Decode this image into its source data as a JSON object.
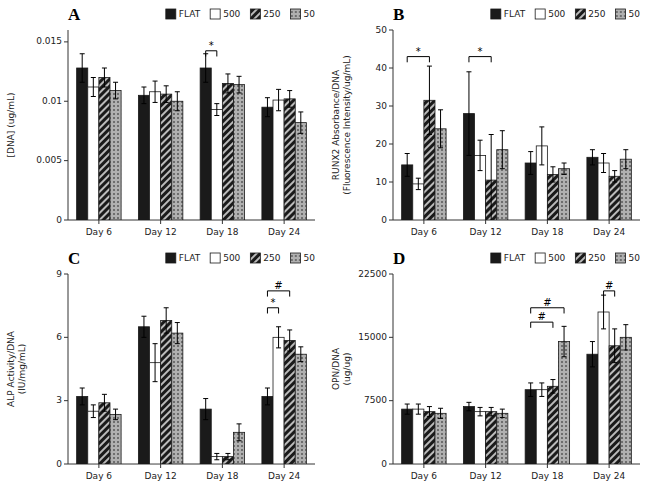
{
  "chart_data": [
    {
      "type": "bar",
      "title": "A",
      "ylabel": "[DNA] (ug/mL)",
      "categories": [
        "Day 6",
        "Day 12",
        "Day 18",
        "Day 24"
      ],
      "series": [
        {
          "name": "FLAT",
          "color": "#1a1a1a",
          "values": [
            0.0128,
            0.0105,
            0.0128,
            0.0095
          ],
          "errors": [
            0.0012,
            0.0007,
            0.0012,
            0.0008
          ]
        },
        {
          "name": "500",
          "color": "#ffffff",
          "values": [
            0.0112,
            0.0108,
            0.0093,
            0.0101
          ],
          "errors": [
            0.0008,
            0.0009,
            0.0005,
            0.0009
          ]
        },
        {
          "name": "250",
          "color": "#1a1a1a",
          "values": [
            0.012,
            0.0106,
            0.0115,
            0.0102
          ],
          "errors": [
            0.0008,
            0.0007,
            0.0008,
            0.0007
          ]
        },
        {
          "name": "50",
          "color": "#b0b0b0",
          "values": [
            0.0109,
            0.01,
            0.0114,
            0.0082
          ],
          "errors": [
            0.0007,
            0.0008,
            0.0007,
            0.0009
          ]
        }
      ],
      "ylim": [
        0,
        0.016
      ],
      "yticks": [
        0,
        0.005,
        0.01,
        0.015
      ],
      "grid": false,
      "legend": "top",
      "annotations": [
        {
          "text": "*",
          "category": "Day 18",
          "from": "FLAT",
          "to": "500",
          "y": 0.01425
        }
      ]
    },
    {
      "type": "bar",
      "title": "B",
      "ylabel": "RUNX2 Absorbance/DNA\n(Fluorescence Intensity/ug/mL)",
      "categories": [
        "Day 6",
        "Day 12",
        "Day 18",
        "Day 24"
      ],
      "series": [
        {
          "name": "FLAT",
          "color": "#1a1a1a",
          "values": [
            14.5,
            28.0,
            15.0,
            16.5
          ],
          "errors": [
            3.0,
            11.0,
            3.0,
            2.0
          ]
        },
        {
          "name": "500",
          "color": "#ffffff",
          "values": [
            9.5,
            17.0,
            19.5,
            15.0
          ],
          "errors": [
            1.5,
            4.0,
            5.0,
            2.5
          ]
        },
        {
          "name": "250",
          "color": "#1a1a1a",
          "values": [
            31.5,
            10.5,
            12.0,
            11.5
          ],
          "errors": [
            9.0,
            12.0,
            2.0,
            1.5
          ]
        },
        {
          "name": "50",
          "color": "#b0b0b0",
          "values": [
            24.0,
            18.5,
            13.5,
            16.0
          ],
          "errors": [
            5.0,
            5.0,
            1.5,
            2.5
          ]
        }
      ],
      "ylim": [
        0,
        50
      ],
      "yticks": [
        0,
        10,
        20,
        30,
        40,
        50
      ],
      "grid": false,
      "legend": "top",
      "annotations": [
        {
          "text": "*",
          "category": "Day 6",
          "from": "FLAT",
          "to": "250",
          "y": 43
        },
        {
          "text": "*",
          "category": "Day 12",
          "from": "FLAT",
          "to": "250",
          "y": 43
        }
      ]
    },
    {
      "type": "bar",
      "title": "C",
      "ylabel": "ALP Activity/DNA\n(IU/mg/mL)",
      "categories": [
        "Day 6",
        "Day 12",
        "Day 18",
        "Day 24"
      ],
      "series": [
        {
          "name": "FLAT",
          "color": "#1a1a1a",
          "values": [
            3.2,
            6.5,
            2.6,
            3.2
          ],
          "errors": [
            0.4,
            0.5,
            0.5,
            0.4
          ]
        },
        {
          "name": "500",
          "color": "#ffffff",
          "values": [
            2.5,
            4.8,
            0.35,
            6.0
          ],
          "errors": [
            0.3,
            0.9,
            0.15,
            0.5
          ]
        },
        {
          "name": "250",
          "color": "#1a1a1a",
          "values": [
            2.9,
            6.8,
            0.35,
            5.85
          ],
          "errors": [
            0.4,
            0.6,
            0.15,
            0.5
          ]
        },
        {
          "name": "50",
          "color": "#b0b0b0",
          "values": [
            2.35,
            6.2,
            1.5,
            5.2
          ],
          "errors": [
            0.25,
            0.5,
            0.4,
            0.35
          ]
        }
      ],
      "ylim": [
        0,
        9
      ],
      "yticks": [
        0,
        3,
        6,
        9
      ],
      "grid": false,
      "legend": "top",
      "annotations": [
        {
          "text": "#",
          "category": "Day 24",
          "from": "FLAT",
          "to": "250",
          "y": 8.2
        },
        {
          "text": "*",
          "category": "Day 24",
          "from": "FLAT",
          "to": "500",
          "y": 7.4
        }
      ]
    },
    {
      "type": "bar",
      "title": "D",
      "ylabel": "OPN/DNA\n(ug/ug)",
      "categories": [
        "Day 6",
        "Day 12",
        "Day 18",
        "Day 24"
      ],
      "series": [
        {
          "name": "FLAT",
          "color": "#1a1a1a",
          "values": [
            6500,
            6800,
            8800,
            13000
          ],
          "errors": [
            600,
            500,
            800,
            1500
          ]
        },
        {
          "name": "500",
          "color": "#ffffff",
          "values": [
            6500,
            6200,
            8800,
            18000
          ],
          "errors": [
            600,
            500,
            800,
            2000
          ]
        },
        {
          "name": "250",
          "color": "#1a1a1a",
          "values": [
            6200,
            6200,
            9200,
            14000
          ],
          "errors": [
            600,
            500,
            800,
            2000
          ]
        },
        {
          "name": "50",
          "color": "#b0b0b0",
          "values": [
            6000,
            6000,
            14500,
            15000
          ],
          "errors": [
            600,
            500,
            1800,
            1500
          ]
        }
      ],
      "ylim": [
        0,
        22500
      ],
      "yticks": [
        0,
        7500,
        15000,
        22500
      ],
      "grid": false,
      "legend": "top",
      "annotations": [
        {
          "text": "#",
          "category": "Day 18",
          "from": "FLAT",
          "to": "50",
          "y": 18500
        },
        {
          "text": "#",
          "category": "Day 18",
          "from": "FLAT",
          "to": "250",
          "y": 16800
        },
        {
          "text": "#",
          "category": "Day 24",
          "from": "500",
          "to": "250",
          "y": 20500
        }
      ]
    }
  ]
}
